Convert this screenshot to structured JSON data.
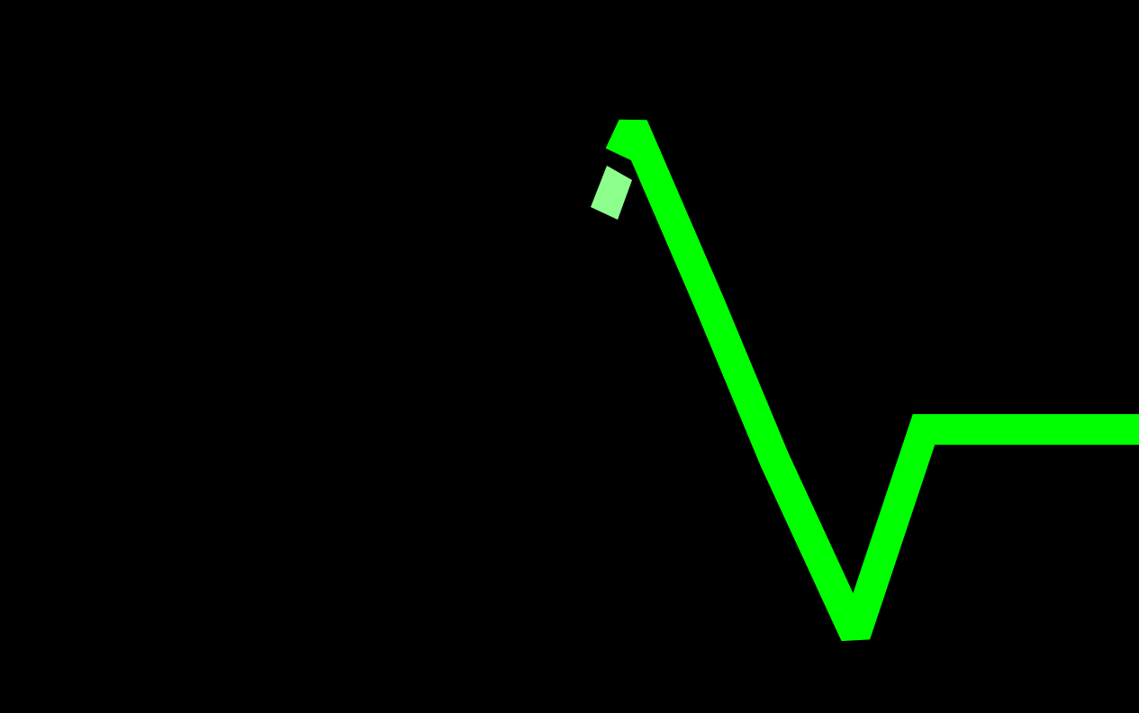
{
  "colors": {
    "background": "#000000",
    "trace": "#00ff00",
    "trace_head": "#8cff8c"
  },
  "icons": {
    "waveform": "heartbeat-trace-icon",
    "cursor": "trace-head-icon"
  }
}
